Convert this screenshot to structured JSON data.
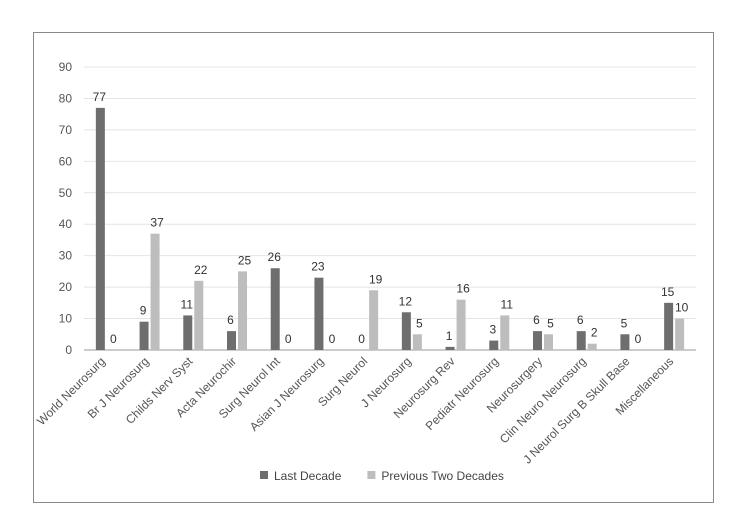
{
  "chart_data": {
    "type": "bar",
    "categories": [
      "World Neurosurg",
      "Br J Neurosurg",
      "Childs Nerv Syst",
      "Acta Neurochir",
      "Surg Neurol Int",
      "Asian J Neurosurg",
      "Surg Neurol",
      "J Neurosurg",
      "Neurosurg Rev",
      "Pediatr Neurosurg",
      "Neurosurgery",
      "Clin Neuro Neurosurg",
      "J Neurol Surg B Skull Base",
      "Miscellaneous"
    ],
    "series": [
      {
        "name": "Last Decade",
        "color": "#6e6e6e",
        "values": [
          77,
          9,
          11,
          6,
          26,
          23,
          0,
          12,
          1,
          3,
          6,
          6,
          5,
          15
        ]
      },
      {
        "name": "Previous Two Decades",
        "color": "#bdbdbd",
        "values": [
          0,
          37,
          22,
          25,
          0,
          0,
          19,
          5,
          16,
          11,
          5,
          2,
          0,
          10
        ]
      }
    ],
    "ylim": [
      0,
      90
    ],
    "yticks": [
      0,
      10,
      20,
      30,
      40,
      50,
      60,
      70,
      80,
      90
    ],
    "grid": true,
    "legend": "bottom",
    "data_labels": true
  }
}
